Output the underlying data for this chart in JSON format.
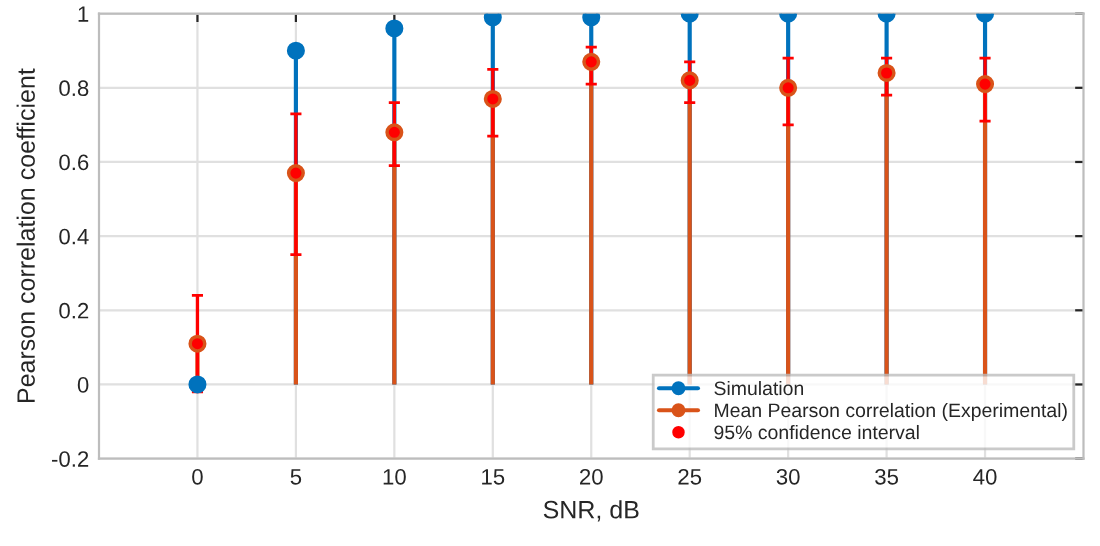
{
  "chart_data": {
    "type": "lollipop",
    "xlabel": "SNR, dB",
    "ylabel": "Pearson correlation coefficient",
    "x": [
      0,
      5,
      10,
      15,
      20,
      25,
      30,
      35,
      40
    ],
    "series": [
      {
        "name": "Simulation",
        "color": "#0072bd",
        "values": [
          0,
          0.9,
          0.96,
          0.99,
          0.99,
          1.0,
          1.0,
          1.0,
          1.0
        ]
      },
      {
        "name": "Mean Pearson correlation (Experimental)",
        "color": "#d95319",
        "values": [
          0.11,
          0.57,
          0.68,
          0.77,
          0.87,
          0.82,
          0.8,
          0.84,
          0.81
        ]
      },
      {
        "name": "95% confidence interval",
        "type": "scatter",
        "color": "#ff0000",
        "values": [
          0.11,
          0.57,
          0.68,
          0.77,
          0.87,
          0.82,
          0.8,
          0.84,
          0.81
        ],
        "errors": [
          [
            -0.02,
            0.24
          ],
          [
            0.35,
            0.73
          ],
          [
            0.59,
            0.76
          ],
          [
            0.67,
            0.85
          ],
          [
            0.81,
            0.91
          ],
          [
            0.76,
            0.87
          ],
          [
            0.7,
            0.88
          ],
          [
            0.78,
            0.88
          ],
          [
            0.71,
            0.88
          ]
        ]
      }
    ],
    "xlim": [
      -5,
      45
    ],
    "xticks": [
      0,
      5,
      10,
      15,
      20,
      25,
      30,
      35,
      40
    ],
    "ylim": [
      -0.2,
      1
    ],
    "yticks": [
      -0.2,
      0,
      0.2,
      0.4,
      0.6,
      0.8,
      1
    ],
    "grid": true,
    "legend": "bottom right",
    "marker": "circle"
  }
}
